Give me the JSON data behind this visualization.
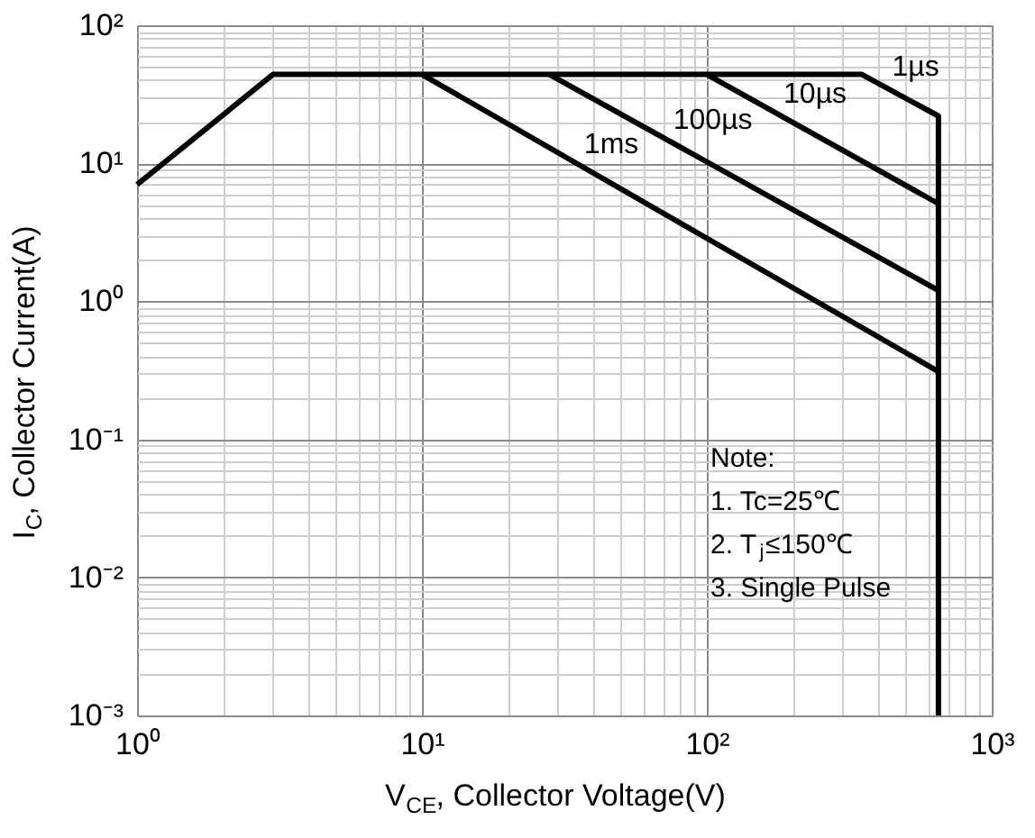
{
  "chart_data": {
    "type": "line",
    "xlabel": "V$_{CE}$, Collector Voltage(V)",
    "ylabel": "I$_{C}$, Collector Current(A)",
    "series": [
      {
        "name": "1µs",
        "color": "#000000",
        "x": [
          1,
          3,
          350,
          650,
          650
        ],
        "values": [
          7,
          44,
          44,
          22,
          0.001
        ]
      },
      {
        "name": "1ms",
        "color": "#000000",
        "x": [
          10,
          650
        ],
        "values": [
          44,
          0.31
        ]
      },
      {
        "name": "100µs",
        "color": "#000000",
        "x": [
          28,
          650
        ],
        "values": [
          44,
          1.2
        ]
      },
      {
        "name": "10µs",
        "color": "#000000",
        "x": [
          100,
          650
        ],
        "values": [
          44,
          5.1
        ]
      }
    ],
    "annotations": [
      "Note:",
      "1. Tc=25℃",
      "2. T$_{j}$≤150℃",
      "3. Single Pulse"
    ],
    "xlim": [
      1,
      1000
    ],
    "ylim": [
      0.001,
      100
    ],
    "xticks": [
      {
        "value": 1,
        "label": "10⁰"
      },
      {
        "value": 2,
        "label": null
      },
      {
        "value": 3,
        "label": null
      },
      {
        "value": 4,
        "label": null
      },
      {
        "value": 5,
        "label": null
      },
      {
        "value": 6,
        "label": null
      },
      {
        "value": 7,
        "label": null
      },
      {
        "value": 8,
        "label": null
      },
      {
        "value": 9,
        "label": null
      },
      {
        "value": 10,
        "label": "10¹"
      },
      {
        "value": 20,
        "label": null
      },
      {
        "value": 30,
        "label": null
      },
      {
        "value": 40,
        "label": null
      },
      {
        "value": 50,
        "label": null
      },
      {
        "value": 60,
        "label": null
      },
      {
        "value": 70,
        "label": null
      },
      {
        "value": 80,
        "label": null
      },
      {
        "value": 90,
        "label": null
      },
      {
        "value": 100,
        "label": "10²"
      },
      {
        "value": 200,
        "label": null
      },
      {
        "value": 300,
        "label": null
      },
      {
        "value": 400,
        "label": null
      },
      {
        "value": 500,
        "label": null
      },
      {
        "value": 600,
        "label": null
      },
      {
        "value": 700,
        "label": null
      },
      {
        "value": 800,
        "label": null
      },
      {
        "value": 900,
        "label": null
      },
      {
        "value": 1000,
        "label": "10³"
      }
    ],
    "yticks": [
      {
        "value": 0.001,
        "label": "10⁻³"
      },
      {
        "value": 0.002,
        "label": null
      },
      {
        "value": 0.003,
        "label": null
      },
      {
        "value": 0.004,
        "label": null
      },
      {
        "value": 0.005,
        "label": null
      },
      {
        "value": 0.006,
        "label": null
      },
      {
        "value": 0.007,
        "label": null
      },
      {
        "value": 0.008,
        "label": null
      },
      {
        "value": 0.009,
        "label": null
      },
      {
        "value": 0.01,
        "label": "10⁻²"
      },
      {
        "value": 0.02,
        "label": null
      },
      {
        "value": 0.03,
        "label": null
      },
      {
        "value": 0.04,
        "label": null
      },
      {
        "value": 0.05,
        "label": null
      },
      {
        "value": 0.06,
        "label": null
      },
      {
        "value": 0.07,
        "label": null
      },
      {
        "value": 0.08,
        "label": null
      },
      {
        "value": 0.09,
        "label": null
      },
      {
        "value": 0.1,
        "label": "10⁻¹"
      },
      {
        "value": 0.2,
        "label": null
      },
      {
        "value": 0.3,
        "label": null
      },
      {
        "value": 0.4,
        "label": null
      },
      {
        "value": 0.5,
        "label": null
      },
      {
        "value": 0.6,
        "label": null
      },
      {
        "value": 0.7,
        "label": null
      },
      {
        "value": 0.8,
        "label": null
      },
      {
        "value": 0.9,
        "label": null
      },
      {
        "value": 1,
        "label": "10⁰"
      },
      {
        "value": 2,
        "label": null
      },
      {
        "value": 3,
        "label": null
      },
      {
        "value": 4,
        "label": null
      },
      {
        "value": 5,
        "label": null
      },
      {
        "value": 6,
        "label": null
      },
      {
        "value": 7,
        "label": null
      },
      {
        "value": 8,
        "label": null
      },
      {
        "value": 9,
        "label": null
      },
      {
        "value": 10,
        "label": "10¹"
      },
      {
        "value": 20,
        "label": null
      },
      {
        "value": 30,
        "label": null
      },
      {
        "value": 40,
        "label": null
      },
      {
        "value": 50,
        "label": null
      },
      {
        "value": 60,
        "label": null
      },
      {
        "value": 70,
        "label": null
      },
      {
        "value": 80,
        "label": null
      },
      {
        "value": 90,
        "label": null
      },
      {
        "value": 100,
        "label": "10²"
      }
    ],
    "log": "xy",
    "grid": true,
    "legend": false,
    "marker": "none",
    "line_style": "solid"
  }
}
